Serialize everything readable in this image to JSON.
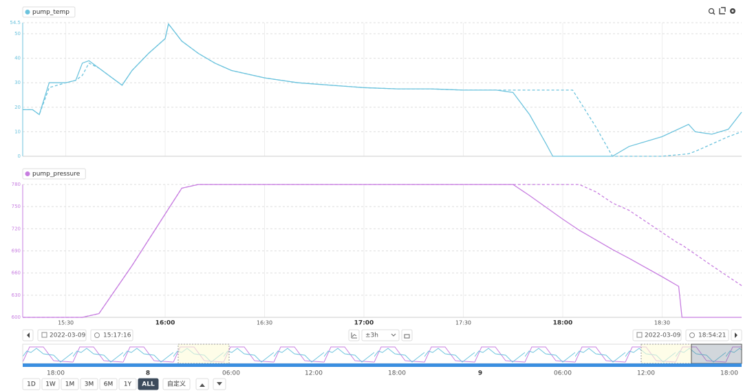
{
  "chart_data": [
    {
      "type": "line",
      "x": [
        "15:17",
        "15:20",
        "15:22",
        "15:25",
        "15:30",
        "15:33",
        "15:35",
        "15:37",
        "15:40",
        "15:45",
        "15:47",
        "15:50",
        "15:55",
        "16:00",
        "16:01",
        "16:05",
        "16:10",
        "16:15",
        "16:20",
        "16:30",
        "16:40",
        "16:50",
        "17:00",
        "17:10",
        "17:20",
        "17:30",
        "17:40",
        "17:45",
        "17:50",
        "17:55",
        "17:57",
        "18:00",
        "18:03",
        "18:10",
        "18:15",
        "18:20",
        "18:30",
        "18:38",
        "18:40",
        "18:45",
        "18:50",
        "18:54"
      ],
      "series": [
        {
          "name": "pump_temp",
          "color": "#6cc3dd",
          "values": [
            19,
            19,
            17,
            30,
            30,
            31,
            38,
            39,
            36,
            31,
            29,
            35,
            42,
            48,
            54,
            47,
            42,
            38,
            35,
            32,
            30,
            29,
            28,
            27.5,
            27.5,
            27,
            27,
            26,
            17,
            5,
            0,
            0,
            0,
            0,
            0,
            4,
            8,
            13,
            10,
            9,
            11,
            18
          ]
        },
        {
          "color": "#6cc3dd",
          "dashed": true,
          "values": [
            19,
            19,
            17,
            28,
            30,
            31,
            33,
            38,
            36,
            31,
            29,
            35,
            42,
            48,
            54,
            47,
            42,
            38,
            35,
            32,
            30,
            29,
            28,
            27.5,
            27.5,
            27,
            27,
            27,
            27,
            27,
            27,
            27,
            27,
            12,
            0,
            0,
            0,
            1,
            2,
            5,
            8,
            10
          ]
        }
      ],
      "xlim": [
        "15:17",
        "18:54"
      ],
      "xticks": [
        "15:30",
        "16:00",
        "16:30",
        "17:00",
        "17:30",
        "18:00",
        "18:30"
      ],
      "show_xtick_labels": false,
      "ylim": [
        0,
        54.5
      ],
      "yticks": [
        0,
        10,
        20,
        30,
        40,
        50,
        54.5
      ],
      "grid": true
    },
    {
      "type": "line",
      "x": [
        "15:17",
        "15:35",
        "15:40",
        "15:50",
        "16:00",
        "16:05",
        "16:10",
        "17:45",
        "17:50",
        "18:00",
        "18:05",
        "18:10",
        "18:15",
        "18:20",
        "18:30",
        "18:35",
        "18:36",
        "18:45",
        "18:54"
      ],
      "series": [
        {
          "name": "pump_pressure",
          "color": "#c77de0",
          "values": [
            600,
            600,
            605,
            670,
            740,
            775,
            780,
            780,
            765,
            733,
            718,
            705,
            692,
            680,
            655,
            642,
            600,
            600,
            600
          ]
        },
        {
          "color": "#c77de0",
          "dashed": true,
          "values": [
            600,
            600,
            605,
            670,
            740,
            775,
            780,
            780,
            780,
            780,
            780,
            770,
            755,
            745,
            715,
            700,
            698,
            670,
            643
          ]
        }
      ],
      "xlim": [
        "15:17",
        "18:54"
      ],
      "xticks": [
        "15:30",
        "16:00",
        "16:30",
        "17:00",
        "17:30",
        "18:00",
        "18:30"
      ],
      "show_xtick_labels": true,
      "ylim": [
        600,
        780
      ],
      "yticks": [
        600,
        630,
        660,
        690,
        720,
        750,
        780
      ],
      "grid": true
    }
  ],
  "controls": {
    "start_date": "2022-03-09",
    "start_time": "15:17:16",
    "range": "±3h",
    "end_date": "2022-03-09",
    "end_time": "18:54:21"
  },
  "navigator": {
    "labels": [
      "18:00",
      "8",
      "06:00",
      "12:00",
      "18:00",
      "9",
      "06:00",
      "12:00",
      "18:00"
    ]
  },
  "range_buttons": [
    "1D",
    "1W",
    "1M",
    "3M",
    "6M",
    "1Y",
    "ALL"
  ],
  "active_range": "ALL",
  "custom_button": "自定义"
}
